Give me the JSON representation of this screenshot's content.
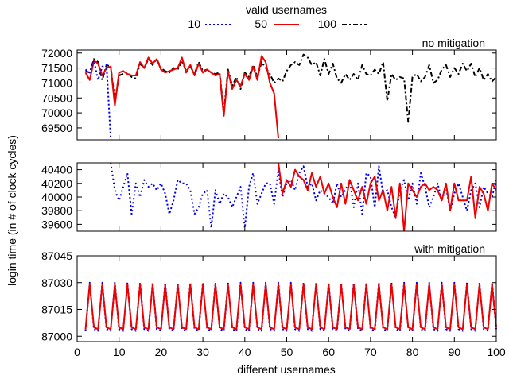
{
  "chart_data": {
    "type": "line",
    "legend": {
      "title": "valid usernames",
      "placement": "top-center",
      "entries": [
        {
          "name": "10",
          "color": "#0000ee",
          "dash": "dotted"
        },
        {
          "name": "50",
          "color": "#ee0000",
          "dash": "solid"
        },
        {
          "name": "100",
          "color": "#000000",
          "dash": "dash-dot"
        }
      ]
    },
    "xlabel": "different usernames",
    "ylabel": "login time (in # of clock cycles)",
    "xlim": [
      0,
      100
    ],
    "xticks": [
      0,
      10,
      20,
      30,
      40,
      50,
      60,
      70,
      80,
      90,
      100
    ],
    "panels": [
      {
        "title": "no mitigation",
        "ylim": [
          69100,
          72100
        ],
        "yticks": [
          69500,
          70000,
          70500,
          71000,
          71500,
          72000
        ],
        "series": [
          {
            "name": "100",
            "x": [
              2,
              3,
              4,
              5,
              6,
              7,
              8,
              9,
              10,
              11,
              12,
              13,
              14,
              15,
              16,
              17,
              18,
              19,
              20,
              21,
              22,
              23,
              24,
              25,
              26,
              27,
              28,
              29,
              30,
              31,
              32,
              33,
              34,
              35,
              36,
              37,
              38,
              39,
              40,
              41,
              42,
              43,
              44,
              45,
              46,
              47,
              48,
              49,
              50,
              51,
              52,
              53,
              54,
              55,
              56,
              57,
              58,
              59,
              60,
              61,
              62,
              63,
              64,
              65,
              66,
              67,
              68,
              69,
              70,
              71,
              72,
              73,
              74,
              75,
              76,
              77,
              78,
              79,
              80,
              81,
              82,
              83,
              84,
              85,
              86,
              87,
              88,
              89,
              90,
              91,
              92,
              93,
              94,
              95,
              96,
              97,
              98,
              99,
              100
            ],
            "values": [
              71400,
              71350,
              71800,
              71700,
              71100,
              71600,
              71550,
              70400,
              71250,
              71300,
              71350,
              71200,
              71150,
              71650,
              71500,
              71800,
              71600,
              71800,
              71500,
              71400,
              71350,
              71500,
              71450,
              71750,
              71400,
              71550,
              71300,
              71700,
              71400,
              71450,
              71350,
              71300,
              71350,
              70000,
              71450,
              70900,
              71200,
              70800,
              71350,
              71200,
              71600,
              71200,
              71700,
              71500,
              71300,
              71000,
              71150,
              71050,
              71400,
              71600,
              71700,
              71600,
              71950,
              71850,
              71600,
              71700,
              71250,
              71800,
              71300,
              71650,
              71150,
              71000,
              71300,
              71100,
              71300,
              71100,
              71600,
              71300,
              71250,
              71450,
              71300,
              71700,
              70400,
              71300,
              71100,
              71200,
              71150,
              69700,
              71200,
              71300,
              71050,
              71200,
              71600,
              71000,
              71100,
              71450,
              71600,
              71200,
              71500,
              71300,
              71650,
              71400,
              71650,
              71200,
              71500,
              71100,
              71300,
              71050,
              71200
            ]
          },
          {
            "name": "50",
            "x": [
              2,
              3,
              4,
              5,
              6,
              7,
              8,
              9,
              10,
              11,
              12,
              13,
              14,
              15,
              16,
              17,
              18,
              19,
              20,
              21,
              22,
              23,
              24,
              25,
              26,
              27,
              28,
              29,
              30,
              31,
              32,
              33,
              34,
              35,
              36,
              37,
              38,
              39,
              40,
              41,
              42,
              43,
              44,
              45,
              46,
              47,
              48
            ],
            "values": [
              71350,
              71100,
              71750,
              71650,
              71250,
              71500,
              71550,
              70250,
              71350,
              71400,
              71300,
              71250,
              71250,
              71700,
              71500,
              71850,
              71650,
              71800,
              71450,
              71350,
              71400,
              71450,
              71500,
              71850,
              71350,
              71600,
              71250,
              71650,
              71350,
              71450,
              71350,
              71250,
              71300,
              69900,
              71400,
              70800,
              71100,
              70900,
              71300,
              71100,
              71550,
              71100,
              71900,
              71700,
              71000,
              70650,
              69150
            ]
          },
          {
            "name": "10",
            "x": [
              2,
              3,
              4,
              5,
              6,
              7,
              8
            ],
            "values": [
              71450,
              71350,
              71750,
              71100,
              71550,
              71600,
              69150
            ]
          }
        ]
      },
      {
        "title": "",
        "ylim": [
          39500,
          40500
        ],
        "yticks": [
          39600,
          39800,
          40000,
          40200,
          40400
        ],
        "series": [
          {
            "name": "10",
            "x": [
              8,
              9,
              10,
              11,
              12,
              13,
              14,
              15,
              16,
              17,
              18,
              19,
              20,
              21,
              22,
              23,
              24,
              25,
              26,
              27,
              28,
              29,
              30,
              31,
              32,
              33,
              34,
              35,
              36,
              37,
              38,
              39,
              40,
              41,
              42,
              43,
              44,
              45,
              46,
              47,
              48,
              49,
              50,
              51,
              52,
              53,
              54,
              55,
              56,
              57,
              58,
              59,
              60,
              61,
              62,
              63,
              64,
              65,
              66,
              67,
              68,
              69,
              70,
              71,
              72,
              73,
              74,
              75,
              76,
              77,
              78,
              79,
              80,
              81,
              82,
              83,
              84,
              85,
              86,
              87,
              88,
              89,
              90,
              91,
              92,
              93,
              94,
              95,
              96,
              97,
              98,
              99,
              100
            ],
            "values": [
              40500,
              40100,
              39950,
              40150,
              40350,
              39750,
              40200,
              40000,
              40250,
              40150,
              40200,
              40100,
              40200,
              40050,
              39750,
              39950,
              40250,
              40200,
              40200,
              40100,
              39750,
              39850,
              40050,
              40100,
              39550,
              40100,
              39900,
              40050,
              40000,
              39850,
              40000,
              40150,
              39550,
              40150,
              40350,
              39900,
              40050,
              40200,
              40200,
              39900,
              40400,
              40000,
              40200,
              40250,
              40100,
              40350,
              40450,
              40150,
              40200,
              39950,
              40100,
              40050,
              40000,
              39900,
              40200,
              40000,
              40100,
              40250,
              39850,
              40200,
              39750,
              40350,
              40300,
              39850,
              40450,
              40050,
              40100,
              39850,
              39700,
              40100,
              40250,
              39950,
              40200,
              39900,
              40350,
              40150,
              39850,
              40000,
              40200,
              39950,
              40150,
              39800,
              40050,
              40200,
              40000,
              39800,
              40100,
              40200,
              39850,
              40150,
              40050,
              40000,
              40250
            ]
          },
          {
            "name": "50",
            "x": [
              48,
              49,
              50,
              51,
              52,
              53,
              54,
              55,
              56,
              57,
              58,
              59,
              60,
              61,
              62,
              63,
              64,
              65,
              66,
              67,
              68,
              69,
              70,
              71,
              72,
              73,
              74,
              75,
              76,
              77,
              78,
              79,
              80,
              81,
              82,
              83,
              84,
              85,
              86,
              87,
              88,
              89,
              90,
              91,
              92,
              93,
              94,
              95,
              96,
              97,
              98,
              99,
              100
            ],
            "values": [
              40500,
              40050,
              40250,
              40150,
              40400,
              40300,
              40250,
              40100,
              40350,
              40150,
              40300,
              40050,
              40200,
              40000,
              39850,
              40200,
              39900,
              40250,
              40100,
              39950,
              40150,
              39900,
              40200,
              40300,
              39950,
              40100,
              39800,
              40150,
              39700,
              40200,
              39500,
              40200,
              40100,
              40000,
              40150,
              40200,
              40100,
              40150,
              40100,
              39950,
              40200,
              39800,
              40200,
              39950,
              39950,
              39950,
              40300,
              39700,
              40150,
              40050,
              39800,
              40200,
              40100
            ]
          }
        ]
      },
      {
        "title": "with mitigation",
        "ylim": [
          86997,
          87045
        ],
        "yticks": [
          87000,
          87015,
          87030,
          87045
        ],
        "series": [
          {
            "name": "10",
            "peak": 87030,
            "trough": 87003,
            "period": 3
          },
          {
            "name": "50",
            "peak": 87029,
            "trough": 87004,
            "period": 3
          }
        ]
      }
    ]
  }
}
